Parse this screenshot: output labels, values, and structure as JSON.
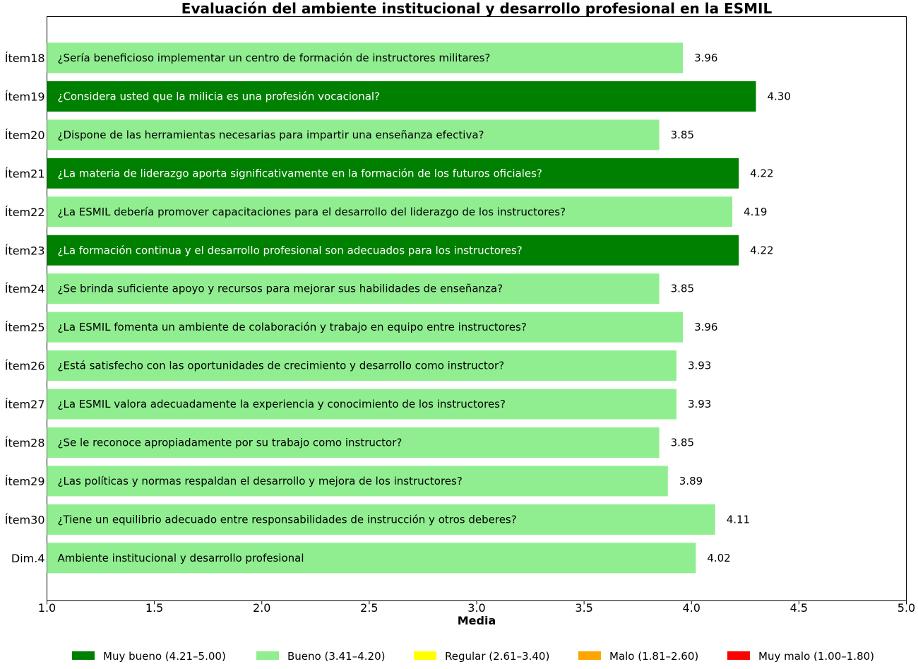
{
  "chart_data": {
    "type": "bar",
    "orientation": "horizontal",
    "title": "Evaluación del ambiente institucional y desarrollo profesional en la ESMIL",
    "xlabel": "Media",
    "ylabel": "",
    "xlim": [
      1.0,
      5.0
    ],
    "xticks": [
      "1.0",
      "1.5",
      "2.0",
      "2.5",
      "3.0",
      "3.5",
      "4.0",
      "4.5",
      "5.0"
    ],
    "grid": false,
    "legend_position": "bottom",
    "categories": [
      "Ítem18",
      "Ítem19",
      "Ítem20",
      "Ítem21",
      "Ítem22",
      "Ítem23",
      "Ítem24",
      "Ítem25",
      "Ítem26",
      "Ítem27",
      "Ítem28",
      "Ítem29",
      "Ítem30",
      "Dim.4"
    ],
    "bar_texts": [
      "¿Sería beneficioso implementar un centro de formación de instructores militares?",
      "¿Considera usted que la milicia es una profesión vocacional?",
      "¿Dispone de las herramientas necesarias para impartir una enseñanza efectiva?",
      "¿La materia de liderazgo aporta significativamente en la formación de los futuros oficiales?",
      "¿La ESMIL debería promover capacitaciones para el desarrollo del liderazgo de los instructores?",
      "¿La formación continua y el desarrollo profesional son adecuados para los instructores?",
      "¿Se brinda suficiente apoyo y recursos para mejorar sus habilidades de enseñanza?",
      "¿La ESMIL fomenta un ambiente de colaboración y trabajo en equipo entre instructores?",
      "¿Está satisfecho con las oportunidades de crecimiento y desarrollo como instructor?",
      "¿La ESMIL valora adecuadamente la experiencia y conocimiento de los instructores?",
      "¿Se le reconoce apropiadamente por su trabajo como instructor?",
      "¿Las políticas y normas respaldan el desarrollo y mejora de los instructores?",
      "¿Tiene un equilibrio adecuado entre responsabilidades de instrucción y otros deberes?",
      "Ambiente institucional y desarrollo profesional"
    ],
    "values": [
      3.96,
      4.3,
      3.85,
      4.22,
      4.19,
      4.22,
      3.85,
      3.96,
      3.93,
      3.93,
      3.85,
      3.89,
      4.11,
      4.02
    ],
    "value_labels": [
      "3.96",
      "4.30",
      "3.85",
      "4.22",
      "4.19",
      "4.22",
      "3.85",
      "3.96",
      "3.93",
      "3.93",
      "3.85",
      "3.89",
      "4.11",
      "4.02"
    ],
    "legend": [
      {
        "label": "Muy bueno (4.21–5.00)",
        "color": "#008000",
        "min": 4.21,
        "max": 5.0
      },
      {
        "label": "Bueno (3.41–4.20)",
        "color": "#90ee90",
        "min": 3.41,
        "max": 4.2
      },
      {
        "label": "Regular (2.61–3.40)",
        "color": "#ffff00",
        "min": 2.61,
        "max": 3.4
      },
      {
        "label": "Malo (1.81–2.60)",
        "color": "#ffa500",
        "min": 1.81,
        "max": 2.6
      },
      {
        "label": "Muy malo (1.00–1.80)",
        "color": "#ff0000",
        "min": 1.0,
        "max": 1.8
      }
    ]
  }
}
